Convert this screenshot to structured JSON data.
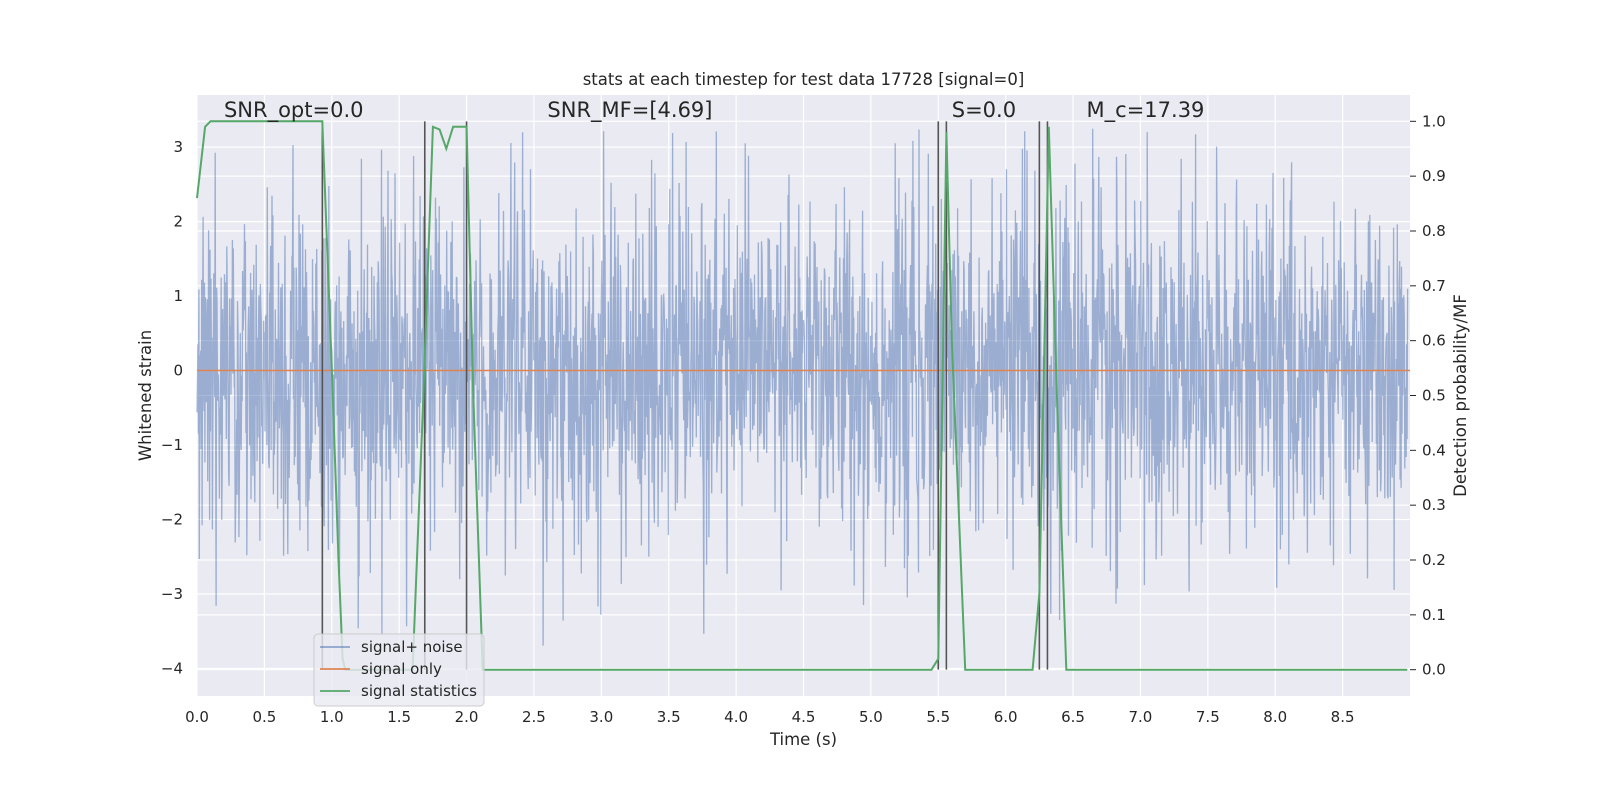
{
  "chart_data": {
    "type": "line",
    "title": "stats at each timestep for test data 17728 [signal=0]",
    "xlabel": "Time (s)",
    "ylabel": "Whitened strain",
    "ylabel_right": "Detection probability/MF",
    "xlim": [
      0.0,
      9.0
    ],
    "ylim": [
      -4.37,
      3.7
    ],
    "ylim_right": [
      -0.048,
      1.048
    ],
    "x_ticks": [
      "0.0",
      "0.5",
      "1.0",
      "1.5",
      "2.0",
      "2.5",
      "3.0",
      "3.5",
      "4.0",
      "4.5",
      "5.0",
      "5.5",
      "6.0",
      "6.5",
      "7.0",
      "7.5",
      "8.0",
      "8.5"
    ],
    "y_ticks": [
      {
        "value": 3,
        "label": "3"
      },
      {
        "value": 2,
        "label": "2"
      },
      {
        "value": 1,
        "label": "1"
      },
      {
        "value": 0,
        "label": "0"
      },
      {
        "value": -1,
        "label": "−1"
      },
      {
        "value": -2,
        "label": "−2"
      },
      {
        "value": -3,
        "label": "−3"
      },
      {
        "value": -4,
        "label": "−4"
      }
    ],
    "y_ticks_right": [
      "1.0",
      "0.9",
      "0.8",
      "0.7",
      "0.6",
      "0.5",
      "0.4",
      "0.3",
      "0.2",
      "0.1",
      "0.0"
    ],
    "grid": true,
    "legend_position": "lower-left",
    "annotations": [
      {
        "text": "SNR_opt=0.0",
        "x": 0.2,
        "y": 3.5
      },
      {
        "text": "SNR_MF=[4.69]",
        "x": 2.6,
        "y": 3.5
      },
      {
        "text": "S=0.0",
        "x": 5.6,
        "y": 3.5
      },
      {
        "text": "M_c=17.39",
        "x": 6.6,
        "y": 3.5
      }
    ],
    "series": [
      {
        "name": "signal+ noise",
        "color": "#4c72b0",
        "alpha": 0.5,
        "description_range": [
          -3.7,
          3.3
        ]
      },
      {
        "name": "signal only",
        "color": "#dd8452",
        "x": [
          0.0,
          9.0
        ],
        "y": [
          0.0,
          0.0
        ]
      },
      {
        "name": "signal statistics",
        "color": "#55a868",
        "axis": "right",
        "x": [
          0.0,
          0.06,
          0.1,
          0.2,
          0.5,
          0.8,
          0.93,
          1.0,
          1.05,
          1.08,
          1.1,
          1.2,
          1.5,
          1.6,
          1.68,
          1.75,
          1.8,
          1.85,
          1.9,
          1.95,
          2.0,
          2.05,
          2.12,
          2.2,
          3.0,
          4.0,
          5.0,
          5.3,
          5.45,
          5.5,
          5.56,
          5.6,
          5.7,
          5.8,
          6.0,
          6.2,
          6.25,
          6.32,
          6.38,
          6.45,
          7.0,
          8.0,
          8.98
        ],
        "y": [
          0.86,
          0.99,
          1.0,
          1.0,
          1.0,
          1.0,
          1.0,
          0.55,
          0.2,
          0.02,
          0.0,
          0.0,
          0.0,
          0.0,
          0.5,
          0.99,
          0.985,
          0.95,
          0.99,
          0.99,
          0.99,
          0.5,
          0.0,
          0.0,
          0.0,
          0.0,
          0.0,
          0.0,
          0.0,
          0.02,
          0.98,
          0.6,
          0.0,
          0.0,
          0.0,
          0.0,
          0.14,
          0.99,
          0.5,
          0.0,
          0.0,
          0.0,
          0.0
        ]
      }
    ],
    "vertical_lines": [
      0.93,
      1.69,
      2.0,
      5.5,
      5.56,
      6.25,
      6.31
    ],
    "vertical_line_color": "#555555"
  }
}
